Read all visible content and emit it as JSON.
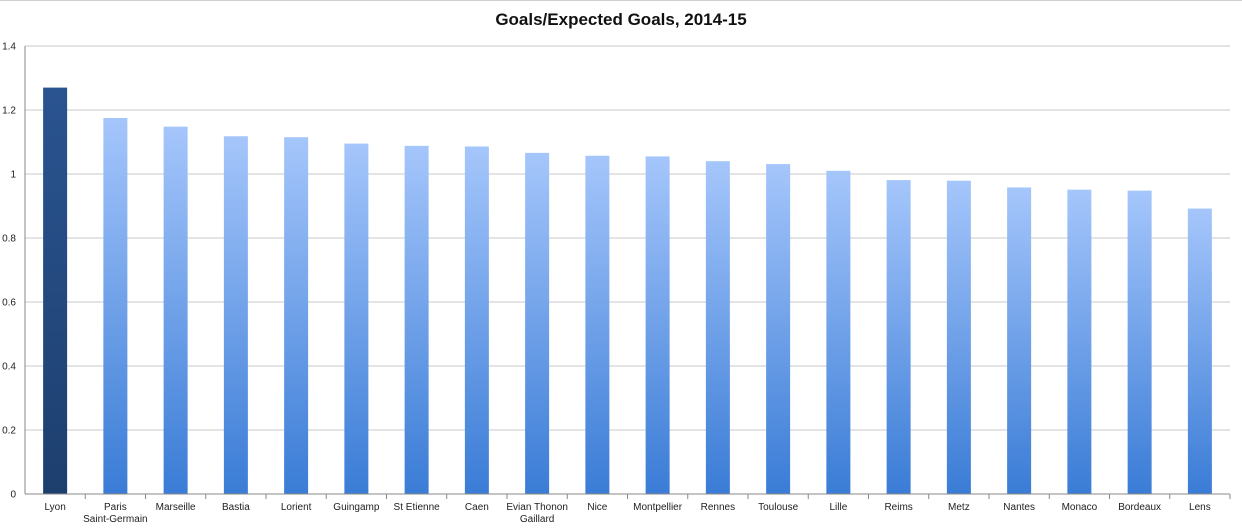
{
  "chart_data": {
    "type": "bar",
    "title": "Goals/Expected Goals, 2014-15",
    "xlabel": "",
    "ylabel": "",
    "ylim": [
      0,
      1.4
    ],
    "yticks": [
      "0",
      "0.2",
      "0.4",
      "0.6",
      "0.8",
      "1",
      "1.2",
      "1.4"
    ],
    "grid": true,
    "legend": "none",
    "categories": [
      "Lyon",
      "Paris Saint-Germain",
      "Marseille",
      "Bastia",
      "Lorient",
      "Guingamp",
      "St Etienne",
      "Caen",
      "Evian Thonon Gaillard",
      "Nice",
      "Montpellier",
      "Rennes",
      "Toulouse",
      "Lille",
      "Reims",
      "Metz",
      "Nantes",
      "Monaco",
      "Bordeaux",
      "Lens"
    ],
    "values": [
      1.27,
      1.175,
      1.148,
      1.118,
      1.115,
      1.095,
      1.088,
      1.086,
      1.066,
      1.057,
      1.055,
      1.04,
      1.031,
      1.01,
      0.981,
      0.979,
      0.958,
      0.951,
      0.948,
      0.892
    ],
    "highlight": "Lyon",
    "colors": {
      "highlight_top": "#2a5490",
      "highlight_bottom": "#1d3f6e",
      "bar_top": "#a5c6fb",
      "bar_bottom": "#3a7cd6",
      "grid": "#c8c8c8",
      "axis": "#888888"
    }
  }
}
